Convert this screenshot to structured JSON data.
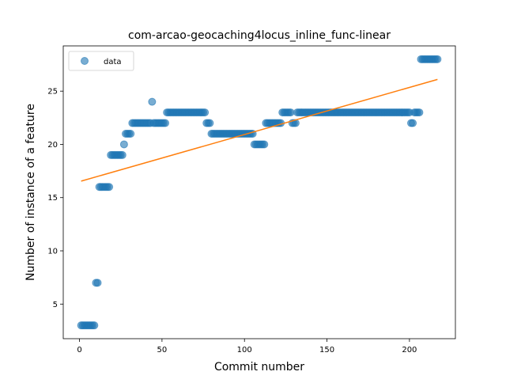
{
  "chart_data": {
    "type": "scatter",
    "title": "com-arcao-geocaching4locus_inline_func-linear",
    "xlabel": "Commit number",
    "ylabel": "Number of instance of a feature",
    "xlim": [
      -9.85,
      227.85
    ],
    "ylim": [
      1.75,
      29.25
    ],
    "xticks": [
      0,
      50,
      100,
      150,
      200
    ],
    "yticks": [
      5,
      10,
      15,
      20,
      25
    ],
    "legend": {
      "position": "top-left",
      "entries": [
        "data"
      ]
    },
    "colors": {
      "data": "#1f77b4",
      "fit": "#ff7f0e"
    },
    "series": [
      {
        "name": "data",
        "segments": [
          {
            "x0": 1,
            "x1": 9,
            "y": 3
          },
          {
            "x0": 10,
            "x1": 11,
            "y": 7
          },
          {
            "x0": 12,
            "x1": 18,
            "y": 16
          },
          {
            "x0": 19,
            "x1": 26,
            "y": 19
          },
          {
            "x0": 27,
            "x1": 27,
            "y": 20
          },
          {
            "x0": 28,
            "x1": 31,
            "y": 21
          },
          {
            "x0": 32,
            "x1": 43,
            "y": 22
          },
          {
            "x0": 44,
            "x1": 44,
            "y": 24
          },
          {
            "x0": 45,
            "x1": 52,
            "y": 22
          },
          {
            "x0": 53,
            "x1": 76,
            "y": 23
          },
          {
            "x0": 77,
            "x1": 79,
            "y": 22
          },
          {
            "x0": 80,
            "x1": 105,
            "y": 21
          },
          {
            "x0": 106,
            "x1": 112,
            "y": 20
          },
          {
            "x0": 113,
            "x1": 122,
            "y": 22
          },
          {
            "x0": 123,
            "x1": 128,
            "y": 23
          },
          {
            "x0": 129,
            "x1": 131,
            "y": 22
          },
          {
            "x0": 132,
            "x1": 200,
            "y": 23
          },
          {
            "x0": 201,
            "x1": 202,
            "y": 22
          },
          {
            "x0": 203,
            "x1": 206,
            "y": 23
          },
          {
            "x0": 207,
            "x1": 217,
            "y": 28
          }
        ]
      },
      {
        "name": "",
        "type": "line",
        "x": [
          1,
          217
        ],
        "y": [
          16.55,
          26.1
        ]
      }
    ]
  }
}
